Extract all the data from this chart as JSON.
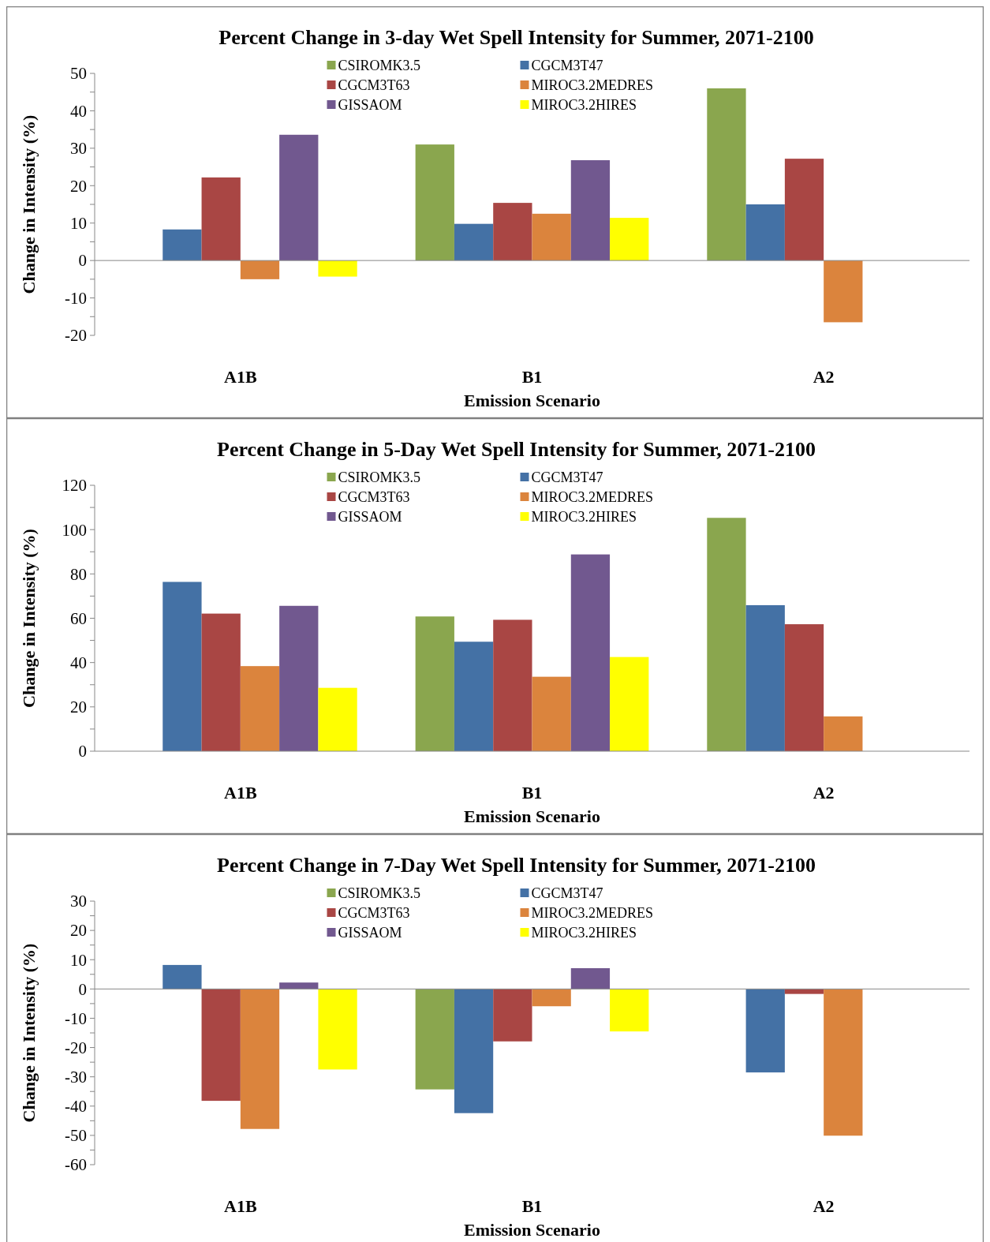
{
  "chart_data": [
    {
      "type": "bar",
      "title": "Percent Change in 3-day Wet Spell Intensity for Summer, 2071-2100",
      "xlabel": "Emission Scenario",
      "ylabel": "Change in Intensity (%)",
      "categories": [
        "A1B",
        "B1",
        "A2"
      ],
      "legend": "top",
      "ylim": [
        -20,
        50
      ],
      "yticks": [
        -20,
        {
          "value": -15,
          "label": null
        },
        -10,
        {
          "value": -5,
          "label": null
        },
        0,
        {
          "value": 5,
          "label": null
        },
        10,
        {
          "value": 15,
          "label": null
        },
        20,
        {
          "value": 25,
          "label": null
        },
        30,
        {
          "value": 35,
          "label": null
        },
        40,
        {
          "value": 45,
          "label": null
        },
        50
      ],
      "series": [
        {
          "name": "CSIROMK3.5",
          "color": "#8aa64e",
          "values": [
            null,
            31,
            46
          ]
        },
        {
          "name": "CGCM3T47",
          "color": "#4471a5",
          "values": [
            8.3,
            9.8,
            15
          ]
        },
        {
          "name": "CGCM3T63",
          "color": "#a94644",
          "values": [
            22.2,
            15.4,
            27.2
          ]
        },
        {
          "name": "MIROC3.2MEDRES",
          "color": "#db843d",
          "values": [
            -5,
            12.5,
            -16.5
          ]
        },
        {
          "name": "GISSAOM",
          "color": "#71588f",
          "values": [
            33.6,
            26.8,
            null
          ]
        },
        {
          "name": "MIROC3.2HIRES",
          "color": "#ffff00",
          "values": [
            -4.3,
            11.4,
            null
          ]
        }
      ]
    },
    {
      "type": "bar",
      "title": "Percent Change in 5-Day Wet Spell Intensity for Summer, 2071-2100",
      "xlabel": "Emission Scenario",
      "ylabel": "Change in Intensity (%)",
      "categories": [
        "A1B",
        "B1",
        "A2"
      ],
      "legend": "top",
      "ylim": [
        0,
        120
      ],
      "yticks": [
        0,
        {
          "value": 10,
          "label": null
        },
        20,
        {
          "value": 30,
          "label": null
        },
        40,
        {
          "value": 50,
          "label": null
        },
        60,
        {
          "value": 70,
          "label": null
        },
        80,
        {
          "value": 90,
          "label": null
        },
        100,
        {
          "value": 110,
          "label": null
        },
        120
      ],
      "series": [
        {
          "name": "CSIROMK3.5",
          "color": "#8aa64e",
          "values": [
            null,
            60.8,
            105.3
          ]
        },
        {
          "name": "CGCM3T47",
          "color": "#4471a5",
          "values": [
            76.4,
            49.4,
            65.9
          ]
        },
        {
          "name": "CGCM3T63",
          "color": "#a94644",
          "values": [
            62.1,
            59.3,
            57.3
          ]
        },
        {
          "name": "MIROC3.2MEDRES",
          "color": "#db843d",
          "values": [
            38.4,
            33.6,
            15.7
          ]
        },
        {
          "name": "GISSAOM",
          "color": "#71588f",
          "values": [
            65.6,
            88.8,
            null
          ]
        },
        {
          "name": "MIROC3.2HIRES",
          "color": "#ffff00",
          "values": [
            28.6,
            42.5,
            null
          ]
        }
      ]
    },
    {
      "type": "bar",
      "title": "Percent Change in 7-Day Wet Spell Intensity for Summer, 2071-2100",
      "xlabel": "Emission Scenario",
      "ylabel": "Change in Intensity (%)",
      "categories": [
        "A1B",
        "B1",
        "A2"
      ],
      "legend": "top",
      "ylim": [
        -60,
        30
      ],
      "yticks": [
        -60,
        {
          "value": -55,
          "label": null
        },
        -50,
        {
          "value": -45,
          "label": null
        },
        -40,
        {
          "value": -35,
          "label": null
        },
        -30,
        {
          "value": -25,
          "label": null
        },
        -20,
        {
          "value": -15,
          "label": null
        },
        -10,
        {
          "value": -5,
          "label": null
        },
        0,
        {
          "value": 5,
          "label": null
        },
        10,
        {
          "value": 15,
          "label": null
        },
        20,
        {
          "value": 25,
          "label": null
        },
        30
      ],
      "series": [
        {
          "name": "CSIROMK3.5",
          "color": "#8aa64e",
          "values": [
            null,
            -34.3,
            null
          ]
        },
        {
          "name": "CGCM3T47",
          "color": "#4471a5",
          "values": [
            8.2,
            -42.4,
            -28.5
          ]
        },
        {
          "name": "CGCM3T63",
          "color": "#a94644",
          "values": [
            -38.2,
            -17.9,
            -1.7
          ]
        },
        {
          "name": "MIROC3.2MEDRES",
          "color": "#db843d",
          "values": [
            -47.8,
            -5.9,
            -50.1
          ]
        },
        {
          "name": "GISSAOM",
          "color": "#71588f",
          "values": [
            2.2,
            7.1,
            null
          ]
        },
        {
          "name": "MIROC3.2HIRES",
          "color": "#ffff00",
          "values": [
            -27.5,
            -14.5,
            null
          ]
        }
      ]
    }
  ]
}
